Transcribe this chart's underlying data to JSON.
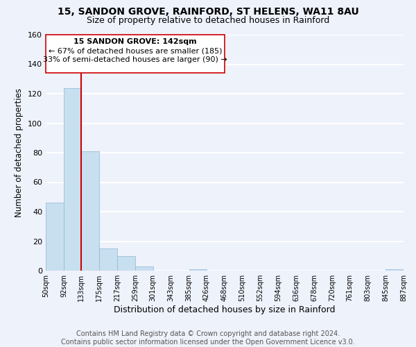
{
  "title1": "15, SANDON GROVE, RAINFORD, ST HELENS, WA11 8AU",
  "title2": "Size of property relative to detached houses in Rainford",
  "xlabel": "Distribution of detached houses by size in Rainford",
  "ylabel": "Number of detached properties",
  "bar_color": "#c8dff0",
  "bar_edge_color": "#8ab8d4",
  "annotation_line_color": "#cc0000",
  "annotation_box_color": "#cc0000",
  "bin_edges": [
    50,
    92,
    133,
    175,
    217,
    259,
    301,
    343,
    385,
    426,
    468,
    510,
    552,
    594,
    636,
    678,
    720,
    761,
    803,
    845,
    887
  ],
  "bin_labels": [
    "50sqm",
    "92sqm",
    "133sqm",
    "175sqm",
    "217sqm",
    "259sqm",
    "301sqm",
    "343sqm",
    "385sqm",
    "426sqm",
    "468sqm",
    "510sqm",
    "552sqm",
    "594sqm",
    "636sqm",
    "678sqm",
    "720sqm",
    "761sqm",
    "803sqm",
    "845sqm",
    "887sqm"
  ],
  "bar_heights": [
    46,
    124,
    81,
    15,
    10,
    3,
    0,
    0,
    1,
    0,
    0,
    0,
    0,
    0,
    0,
    0,
    0,
    0,
    0,
    1
  ],
  "annotation_text_line1": "15 SANDON GROVE: 142sqm",
  "annotation_text_line2": "← 67% of detached houses are smaller (185)",
  "annotation_text_line3": "33% of semi-detached houses are larger (90) →",
  "vline_x": 133,
  "ylim": [
    0,
    160
  ],
  "yticks": [
    0,
    20,
    40,
    60,
    80,
    100,
    120,
    140,
    160
  ],
  "footer1": "Contains HM Land Registry data © Crown copyright and database right 2024.",
  "footer2": "Contains public sector information licensed under the Open Government Licence v3.0.",
  "background_color": "#eef2fb",
  "plot_background": "#eef2fb",
  "grid_color": "white",
  "title1_fontsize": 10,
  "title2_fontsize": 9,
  "annotation_fontsize": 8,
  "footer_fontsize": 7,
  "xlabel_fontsize": 9,
  "ylabel_fontsize": 8.5
}
